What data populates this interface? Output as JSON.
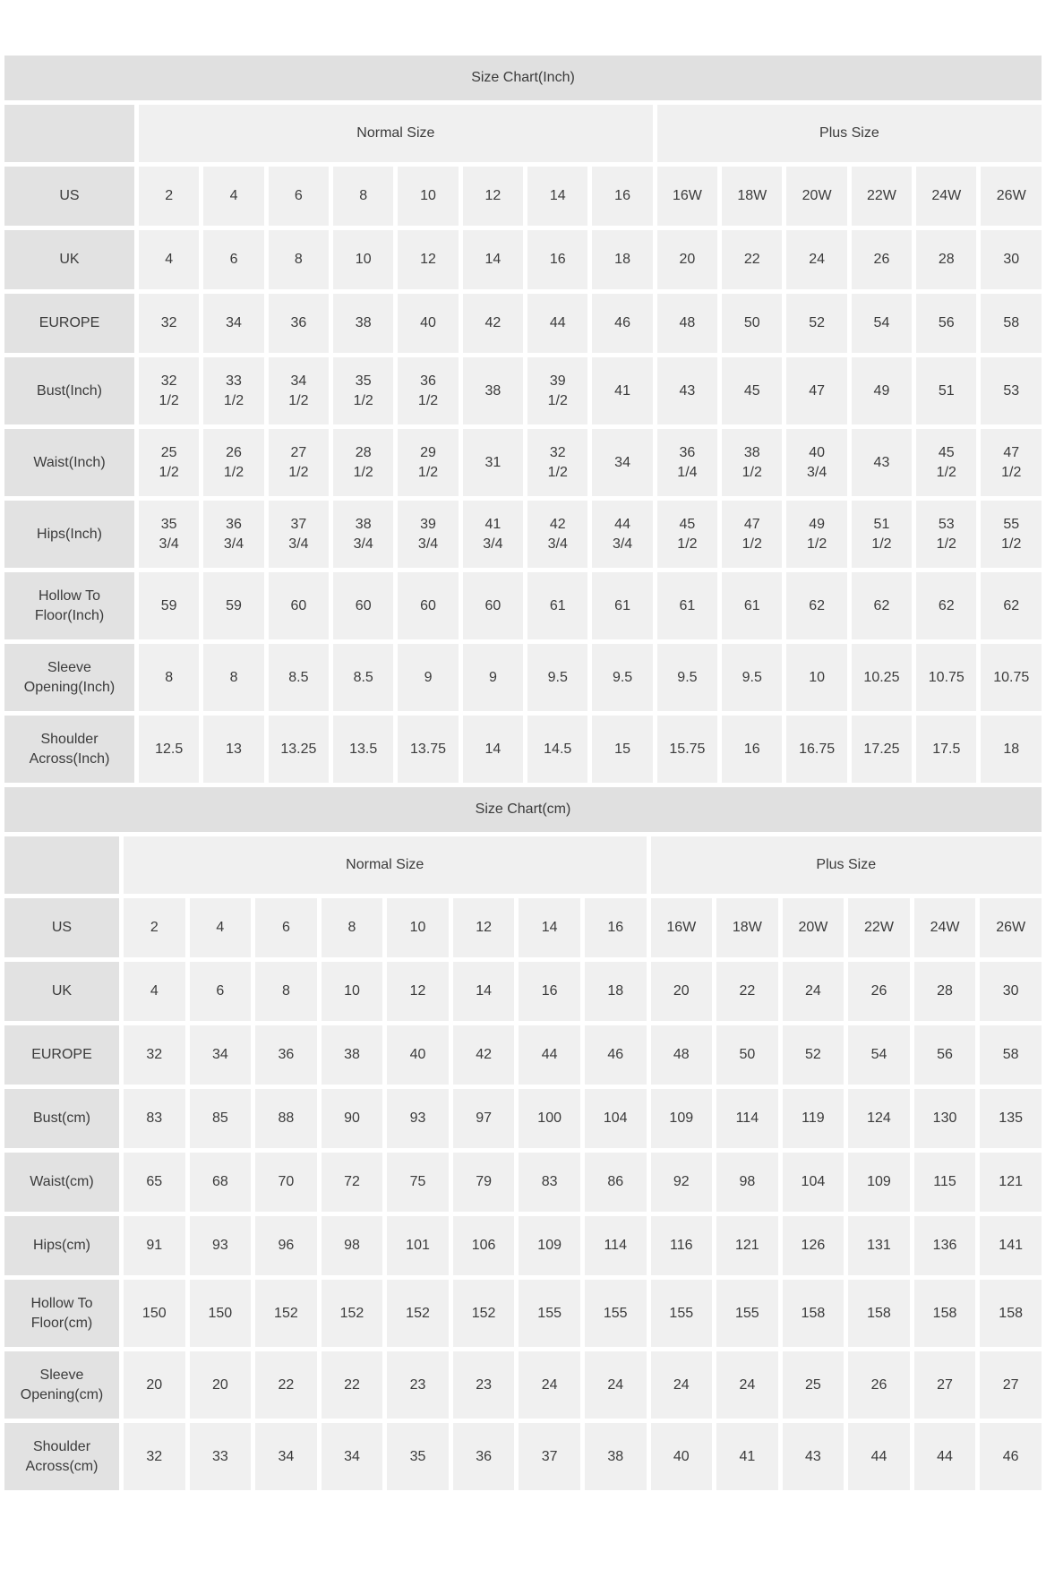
{
  "colors": {
    "title_bg": "#e0e0e0",
    "label_bg": "#e2e2e2",
    "cell_bg": "#f0f0f0",
    "text": "#3b3b3b",
    "page_bg": "#ffffff"
  },
  "chart_data": [
    {
      "type": "table",
      "title": "Size Chart(Inch)",
      "column_groups": [
        {
          "label": "",
          "span": 1
        },
        {
          "label": "Normal Size",
          "span": 8
        },
        {
          "label": "Plus Size",
          "span": 6
        }
      ],
      "rows": [
        {
          "label": "US",
          "values": [
            "2",
            "4",
            "6",
            "8",
            "10",
            "12",
            "14",
            "16",
            "16W",
            "18W",
            "20W",
            "22W",
            "24W",
            "26W"
          ]
        },
        {
          "label": "UK",
          "values": [
            "4",
            "6",
            "8",
            "10",
            "12",
            "14",
            "16",
            "18",
            "20",
            "22",
            "24",
            "26",
            "28",
            "30"
          ]
        },
        {
          "label": "EUROPE",
          "values": [
            "32",
            "34",
            "36",
            "38",
            "40",
            "42",
            "44",
            "46",
            "48",
            "50",
            "52",
            "54",
            "56",
            "58"
          ]
        },
        {
          "label": "Bust(Inch)",
          "values": [
            "32\n1/2",
            "33\n1/2",
            "34\n1/2",
            "35\n1/2",
            "36\n1/2",
            "38",
            "39\n1/2",
            "41",
            "43",
            "45",
            "47",
            "49",
            "51",
            "53"
          ]
        },
        {
          "label": "Waist(Inch)",
          "values": [
            "25\n1/2",
            "26\n1/2",
            "27\n1/2",
            "28\n1/2",
            "29\n1/2",
            "31",
            "32\n1/2",
            "34",
            "36\n1/4",
            "38\n1/2",
            "40\n3/4",
            "43",
            "45\n1/2",
            "47\n1/2"
          ]
        },
        {
          "label": "Hips(Inch)",
          "values": [
            "35\n3/4",
            "36\n3/4",
            "37\n3/4",
            "38\n3/4",
            "39\n3/4",
            "41\n3/4",
            "42\n3/4",
            "44\n3/4",
            "45\n1/2",
            "47\n1/2",
            "49\n1/2",
            "51\n1/2",
            "53\n1/2",
            "55\n1/2"
          ]
        },
        {
          "label": "Hollow To\nFloor(Inch)",
          "values": [
            "59",
            "59",
            "60",
            "60",
            "60",
            "60",
            "61",
            "61",
            "61",
            "61",
            "62",
            "62",
            "62",
            "62"
          ]
        },
        {
          "label": "Sleeve\nOpening(Inch)",
          "values": [
            "8",
            "8",
            "8.5",
            "8.5",
            "9",
            "9",
            "9.5",
            "9.5",
            "9.5",
            "9.5",
            "10",
            "10.25",
            "10.75",
            "10.75"
          ]
        },
        {
          "label": "Shoulder\nAcross(Inch)",
          "values": [
            "12.5",
            "13",
            "13.25",
            "13.5",
            "13.75",
            "14",
            "14.5",
            "15",
            "15.75",
            "16",
            "16.75",
            "17.25",
            "17.5",
            "18"
          ]
        }
      ]
    },
    {
      "type": "table",
      "title": "Size Chart(cm)",
      "column_groups": [
        {
          "label": "",
          "span": 1
        },
        {
          "label": "Normal Size",
          "span": 8
        },
        {
          "label": "Plus Size",
          "span": 6
        }
      ],
      "rows": [
        {
          "label": "US",
          "values": [
            "2",
            "4",
            "6",
            "8",
            "10",
            "12",
            "14",
            "16",
            "16W",
            "18W",
            "20W",
            "22W",
            "24W",
            "26W"
          ]
        },
        {
          "label": "UK",
          "values": [
            "4",
            "6",
            "8",
            "10",
            "12",
            "14",
            "16",
            "18",
            "20",
            "22",
            "24",
            "26",
            "28",
            "30"
          ]
        },
        {
          "label": "EUROPE",
          "values": [
            "32",
            "34",
            "36",
            "38",
            "40",
            "42",
            "44",
            "46",
            "48",
            "50",
            "52",
            "54",
            "56",
            "58"
          ]
        },
        {
          "label": "Bust(cm)",
          "values": [
            "83",
            "85",
            "88",
            "90",
            "93",
            "97",
            "100",
            "104",
            "109",
            "114",
            "119",
            "124",
            "130",
            "135"
          ]
        },
        {
          "label": "Waist(cm)",
          "values": [
            "65",
            "68",
            "70",
            "72",
            "75",
            "79",
            "83",
            "86",
            "92",
            "98",
            "104",
            "109",
            "115",
            "121"
          ]
        },
        {
          "label": "Hips(cm)",
          "values": [
            "91",
            "93",
            "96",
            "98",
            "101",
            "106",
            "109",
            "114",
            "116",
            "121",
            "126",
            "131",
            "136",
            "141"
          ]
        },
        {
          "label": "Hollow To\nFloor(cm)",
          "values": [
            "150",
            "150",
            "152",
            "152",
            "152",
            "152",
            "155",
            "155",
            "155",
            "155",
            "158",
            "158",
            "158",
            "158"
          ]
        },
        {
          "label": "Sleeve\nOpening(cm)",
          "values": [
            "20",
            "20",
            "22",
            "22",
            "23",
            "23",
            "24",
            "24",
            "24",
            "24",
            "25",
            "26",
            "27",
            "27"
          ]
        },
        {
          "label": "Shoulder\nAcross(cm)",
          "values": [
            "32",
            "33",
            "34",
            "34",
            "35",
            "36",
            "37",
            "38",
            "40",
            "41",
            "43",
            "44",
            "44",
            "46"
          ]
        }
      ]
    }
  ]
}
